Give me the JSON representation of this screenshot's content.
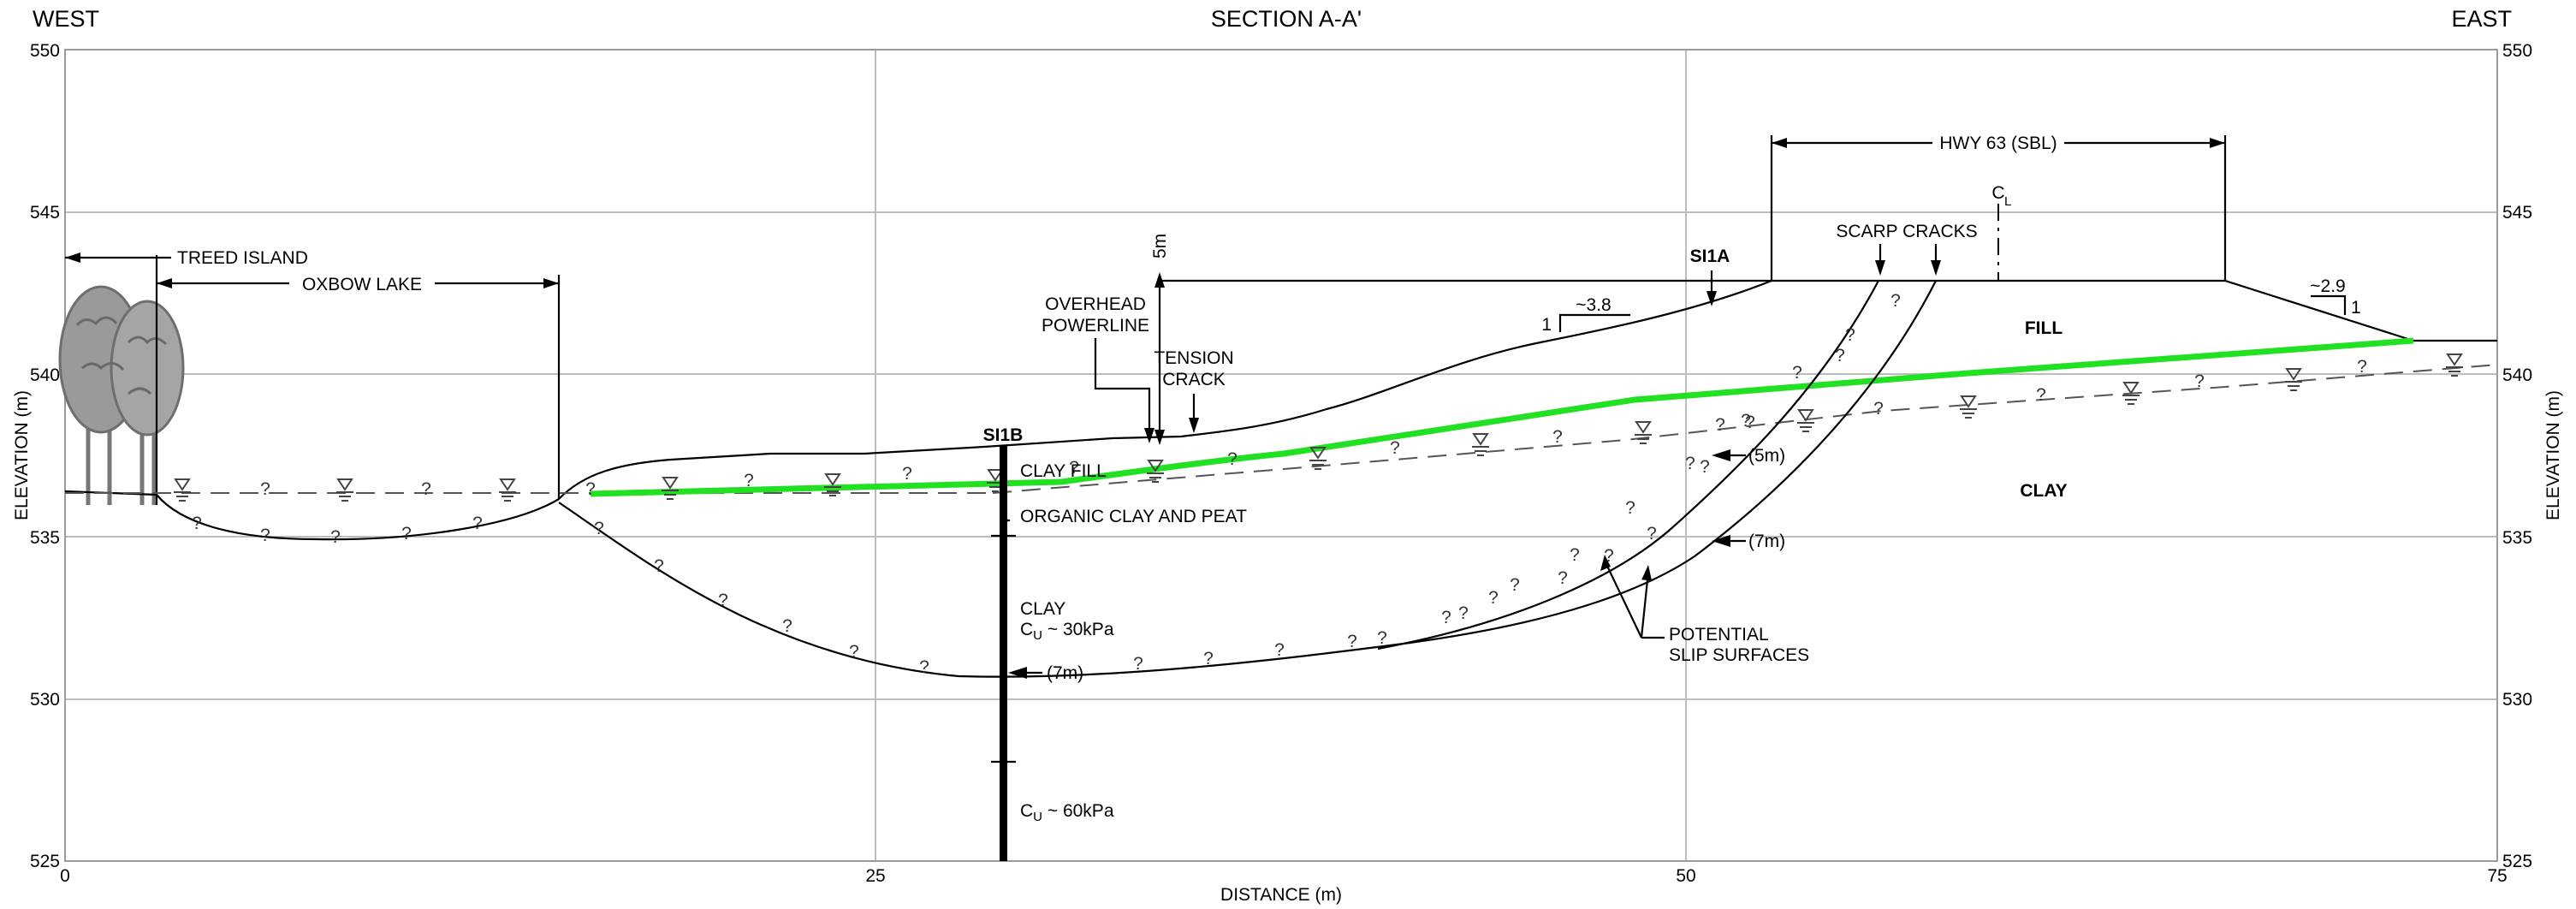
{
  "header": {
    "west": "WEST",
    "title": "SECTION A-A'",
    "east": "EAST"
  },
  "axes": {
    "y_label": "ELEVATION (m)",
    "x_label": "DISTANCE (m)",
    "y_ticks": [
      "550",
      "545",
      "540",
      "535",
      "530",
      "525"
    ],
    "x_ticks": [
      "0",
      "25",
      "50",
      "75"
    ]
  },
  "labels": {
    "treed_island": "TREED ISLAND",
    "oxbow_lake": "OXBOW LAKE",
    "overhead_powerline_1": "OVERHEAD",
    "overhead_powerline_2": "POWERLINE",
    "five_m": "5m",
    "tension_crack_1": "TENSION",
    "tension_crack_2": "CRACK",
    "si1b": "SI1B",
    "si1a": "SI1A",
    "slope_left_run": "~3.8",
    "slope_left_rise": "1",
    "hwy": "HWY 63 (SBL)",
    "centerline": "C",
    "centerline_sub": "L",
    "scarp_cracks": "SCARP CRACKS",
    "slope_right_run": "~2.9",
    "slope_right_rise": "1",
    "fill": "FILL",
    "clay_right": "CLAY",
    "clay_fill": "CLAY FILL",
    "organic": "ORGANIC CLAY AND PEAT",
    "clay_layer": "CLAY",
    "cu30_prefix": "C",
    "cu30_sub": "U",
    "cu30_value": " ~ 30kPa",
    "cu60_prefix": "C",
    "cu60_sub": "U",
    "cu60_value": " ~ 60kPa",
    "marker_7m_a": "(7m)",
    "marker_5m": "(5m)",
    "marker_7m_b": "(7m)",
    "potential_1": "POTENTIAL",
    "potential_2": "SLIP SURFACES",
    "uncertain": "?"
  },
  "colors": {
    "fill_clay_interface": "#22e022",
    "grid": "#bdbdbd",
    "line": "#000000"
  }
}
